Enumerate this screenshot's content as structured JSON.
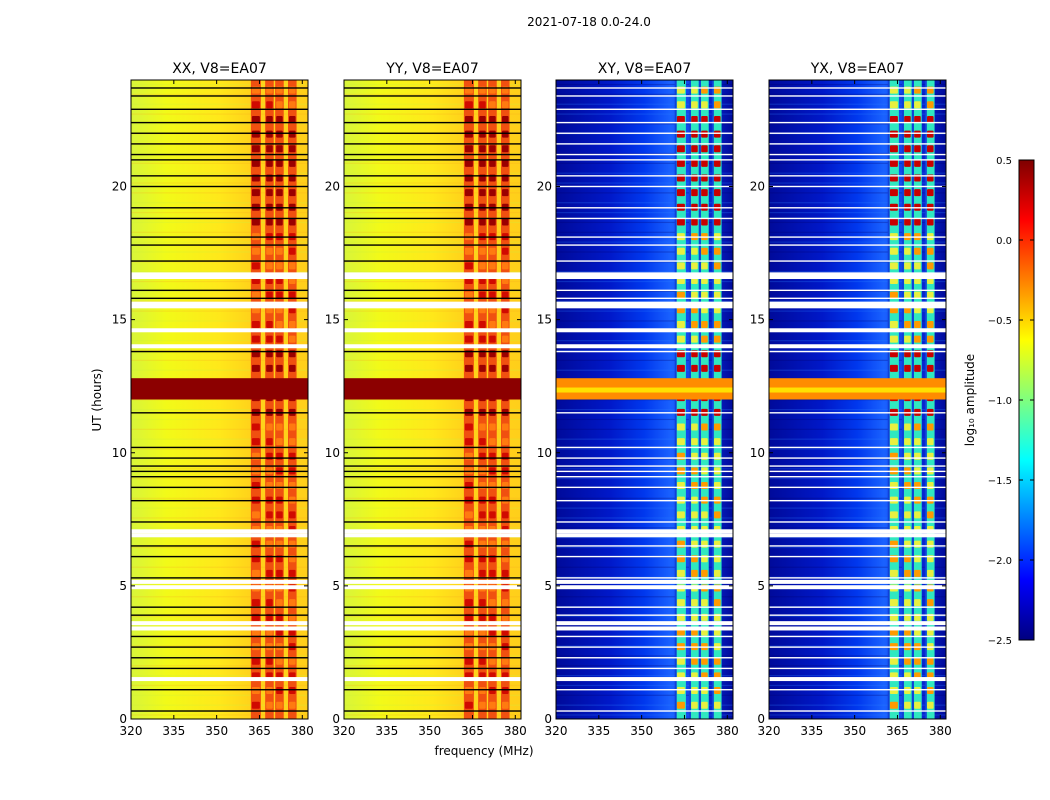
{
  "figure_title": "2021-07-18 0.0-24.0",
  "chart_data": {
    "type": "heatmap",
    "suptitle": "2021-07-18 0.0-24.0",
    "xlabel": "frequency (MHz)",
    "ylabel": "UT (hours)",
    "xlim": [
      320,
      382
    ],
    "ylim": [
      0,
      24
    ],
    "xticks": [
      320,
      335,
      350,
      365,
      380
    ],
    "yticks": [
      0,
      5,
      10,
      15,
      20
    ],
    "panels": [
      {
        "title": "XX, V8=EA07",
        "polarization": "XX",
        "kind": "auto"
      },
      {
        "title": "YY, V8=EA07",
        "polarization": "YY",
        "kind": "auto"
      },
      {
        "title": "XY, V8=EA07",
        "polarization": "XY",
        "kind": "cross"
      },
      {
        "title": "YX, V8=EA07",
        "polarization": "YX",
        "kind": "cross"
      }
    ],
    "colorbar": {
      "label": "log₁₀ amplitude",
      "colormap": "jet",
      "range": [
        -2.5,
        0.5
      ],
      "ticks": [
        "0.5",
        "0.0",
        "−0.5",
        "−1.0",
        "−1.5",
        "−2.0",
        "−2.5"
      ]
    },
    "rfi_bands_mhz": [
      [
        362,
        365.5
      ],
      [
        367,
        370
      ],
      [
        370.5,
        373.5
      ],
      [
        375,
        378
      ]
    ],
    "strong_rfi_ut": [
      12.0,
      12.8
    ],
    "flagged_gaps_ut": [
      1.5,
      3.4,
      3.6,
      4.95,
      5.15,
      6.9,
      7.05,
      14.0,
      14.6,
      15.5,
      15.6,
      16.6,
      16.7
    ],
    "thin_gaps_ut": [
      0.3,
      1.1,
      1.9,
      2.3,
      2.7,
      3.1,
      3.9,
      4.2,
      5.3,
      6.1,
      6.5,
      7.4,
      8.2,
      8.7,
      9.1,
      9.3,
      9.5,
      9.8,
      10.2,
      11.5,
      13.8,
      15.8,
      16.1,
      17.2,
      17.8,
      18.1,
      18.8,
      19.2,
      20.0,
      20.4,
      21.0,
      21.2,
      21.6,
      22.0,
      22.4,
      22.9,
      23.4,
      23.7
    ]
  }
}
